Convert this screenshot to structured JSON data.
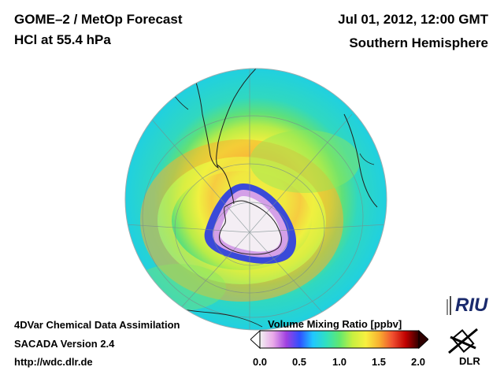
{
  "header": {
    "title_line1": "GOME–2 / MetOp Forecast",
    "title_line2": "HCl at 55.4 hPa",
    "date": "Jul 01, 2012, 12:00 GMT",
    "region": "Southern Hemisphere"
  },
  "footer": {
    "line1": "4DVar Chemical Data Assimilation",
    "line2": "SACADA Version 2.4",
    "url": "http://wdc.dlr.de"
  },
  "colorbar": {
    "title": "Volume Mixing Ratio [ppbv]",
    "ticks": [
      "0.0",
      "0.5",
      "1.0",
      "1.5",
      "2.0"
    ],
    "range": [
      0.0,
      2.0
    ],
    "colors": [
      "#f2f2f2",
      "#e8a8e8",
      "#a040e0",
      "#3050ff",
      "#20c8ff",
      "#30e0c0",
      "#60e870",
      "#c8f040",
      "#f8f040",
      "#f8b030",
      "#f05030",
      "#c00000",
      "#300000"
    ]
  },
  "logos": {
    "riu": "RIU",
    "dlr": "DLR"
  },
  "map": {
    "projection": "orthographic",
    "center": "South Pole",
    "ocean_color": "#26d8d0",
    "mid_ring_color": "#f0f040",
    "vortex_edge_color": "#3a4ad8",
    "vortex_core_color": "#f4eef4"
  }
}
